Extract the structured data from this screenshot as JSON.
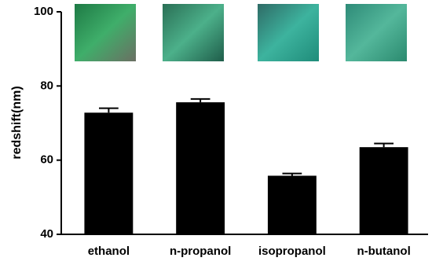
{
  "chart_data": {
    "type": "bar",
    "y_label": "redshift(nm)",
    "categories": [
      "ethanol",
      "n-propanol",
      "isopropanol",
      "n-butanol"
    ],
    "values": [
      72.8,
      75.6,
      55.8,
      63.5
    ],
    "errors": [
      1.2,
      0.9,
      0.6,
      1.0
    ],
    "color": "#000000",
    "ylim": [
      40,
      100
    ],
    "yticks": [
      40,
      60,
      80,
      100
    ],
    "grid": false
  }
}
